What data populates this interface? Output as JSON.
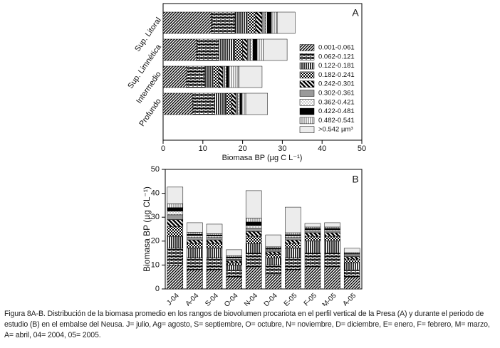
{
  "chart_data": [
    {
      "type": "hbar_stacked",
      "panel": "A",
      "xlabel": "Biomasa BP (µg C L⁻¹)",
      "categories": [
        "Sup. Litoral",
        "Sup. Limnética",
        "Intermedio",
        "Profundo"
      ],
      "xlim": [
        0,
        50
      ],
      "xticks": [
        0,
        10,
        20,
        30,
        40,
        50
      ],
      "series": [
        {
          "name": "0.001-0.061",
          "pattern": "diagonal",
          "values": [
            12.2,
            8.5,
            6.0,
            7.5
          ]
        },
        {
          "name": "0.062-0.121",
          "pattern": "brick",
          "values": [
            5.9,
            5.5,
            4.5,
            5.5
          ]
        },
        {
          "name": "0.122-0.181",
          "pattern": "vlines",
          "values": [
            3.2,
            4.0,
            2.2,
            2.8
          ]
        },
        {
          "name": "0.182-0.241",
          "pattern": "checker",
          "values": [
            2.0,
            2.0,
            1.3,
            1.5
          ]
        },
        {
          "name": "0.242-0.301",
          "pattern": "backdiag",
          "values": [
            1.6,
            1.2,
            1.0,
            1.0
          ]
        },
        {
          "name": "0.302-0.361",
          "pattern": "gray",
          "values": [
            0.8,
            0.8,
            0.5,
            0.5
          ]
        },
        {
          "name": "0.362-0.421",
          "pattern": "dots",
          "values": [
            0.5,
            0.6,
            0.4,
            0.5
          ]
        },
        {
          "name": "0.422-0.481",
          "pattern": "black",
          "values": [
            1.0,
            1.0,
            0.6,
            0.5
          ]
        },
        {
          "name": "0.482-0.541",
          "pattern": "grayv",
          "values": [
            1.5,
            1.6,
            2.6,
            1.0
          ]
        },
        {
          "name": ">0.542 µm³",
          "pattern": "light",
          "values": [
            4.5,
            6.0,
            5.8,
            5.5
          ]
        }
      ]
    },
    {
      "type": "bar_stacked",
      "panel": "B",
      "ylabel": "Biomasa BP (µg CL⁻¹)",
      "categories": [
        "J-04",
        "A-04",
        "S-04",
        "O-04",
        "N-04",
        "D-04",
        "E-05",
        "F-05",
        "M-05",
        "A-05"
      ],
      "ylim": [
        0,
        50
      ],
      "yticks": [
        0,
        10,
        20,
        30,
        40,
        50
      ],
      "series": [
        {
          "pattern": "diagonal",
          "values": [
            10,
            8,
            8,
            5,
            9,
            6,
            8,
            9,
            9,
            5
          ]
        },
        {
          "pattern": "brick",
          "values": [
            7,
            5,
            5,
            3,
            6,
            4,
            5,
            6,
            6,
            3
          ]
        },
        {
          "pattern": "vlines",
          "values": [
            5,
            4,
            4,
            2,
            4,
            3,
            4,
            5,
            5,
            3
          ]
        },
        {
          "pattern": "checker",
          "values": [
            4,
            2,
            2,
            1,
            3,
            1.5,
            2,
            2,
            2,
            1.5
          ]
        },
        {
          "pattern": "backdiag",
          "values": [
            3,
            1.5,
            1.5,
            0.8,
            2,
            1,
            1.5,
            1.5,
            1.5,
            1
          ]
        },
        {
          "pattern": "gray",
          "values": [
            2,
            1,
            1,
            0.6,
            1.5,
            0.6,
            1,
            0.8,
            0.8,
            0.5
          ]
        },
        {
          "pattern": "dots",
          "values": [
            1.5,
            0.8,
            0.6,
            0.5,
            1,
            0.5,
            0.7,
            0.5,
            0.5,
            0.5
          ]
        },
        {
          "pattern": "black",
          "values": [
            1.5,
            0.6,
            0.5,
            0.5,
            1.5,
            0.5,
            0.5,
            0.5,
            0.5,
            0.3
          ]
        },
        {
          "pattern": "grayv",
          "values": [
            1.6,
            0.8,
            0.5,
            0.5,
            1.6,
            0.5,
            0.8,
            0.6,
            0.6,
            0.4
          ]
        },
        {
          "pattern": "light",
          "values": [
            7,
            4,
            4,
            2.5,
            11.5,
            5,
            10.7,
            1.5,
            1.8,
            1.8
          ]
        }
      ]
    }
  ],
  "caption": "Figura 8A-B. Distribución de la biomasa promedio en los rangos de biovolumen procariota en el perfil vertical de la Presa (A) y durante el periodo de estudio (B) en el embalse del Neusa. J= julio, Ag= agosto, S= septiembre, O= octubre, N= noviembre, D= diciembre, E= enero, F= febrero, M= marzo, A= abril, 04= 2004, 05= 2005."
}
